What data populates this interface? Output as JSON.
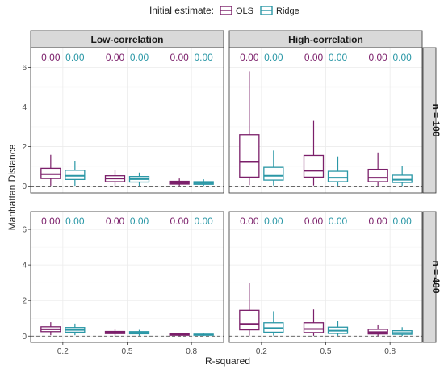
{
  "legend": {
    "title": "Initial estimate:",
    "items": [
      {
        "label": "OLS",
        "color": "#7b1f6a"
      },
      {
        "label": "Ridge",
        "color": "#2a97a6"
      }
    ]
  },
  "chart_data": {
    "type": "boxplot",
    "xlabel": "R-squared",
    "ylabel": "Manhattan Distance",
    "categories": [
      "0.2",
      "0.5",
      "0.8"
    ],
    "ylim": [
      -0.35,
      7.0
    ],
    "yticks": [
      0,
      2,
      4,
      6
    ],
    "reference_line": 0,
    "grid": true,
    "legend_position": "top",
    "columns": [
      "Low-correlation",
      "High-correlation"
    ],
    "rows": [
      "n = 100",
      "n = 400"
    ],
    "series": [
      "OLS",
      "Ridge"
    ],
    "annotation_values": [
      "0.00",
      "0.00"
    ],
    "panels": [
      {
        "column": "Low-correlation",
        "row": "n = 100",
        "boxes": {
          "OLS": [
            [
              0.02,
              0.38,
              0.6,
              0.9,
              1.58
            ],
            [
              0.01,
              0.22,
              0.38,
              0.52,
              0.8
            ],
            [
              0.01,
              0.1,
              0.16,
              0.24,
              0.38
            ]
          ],
          "Ridge": [
            [
              0.02,
              0.33,
              0.52,
              0.8,
              1.25
            ],
            [
              0.01,
              0.2,
              0.35,
              0.48,
              0.68
            ],
            [
              0.01,
              0.09,
              0.15,
              0.22,
              0.34
            ]
          ]
        }
      },
      {
        "column": "High-correlation",
        "row": "n = 100",
        "boxes": {
          "OLS": [
            [
              0.05,
              0.45,
              1.22,
              2.6,
              5.8
            ],
            [
              0.03,
              0.45,
              0.78,
              1.55,
              3.3
            ],
            [
              0.02,
              0.22,
              0.42,
              0.85,
              1.7
            ]
          ],
          "Ridge": [
            [
              0.03,
              0.3,
              0.52,
              0.95,
              1.8
            ],
            [
              0.02,
              0.22,
              0.42,
              0.75,
              1.5
            ],
            [
              0.01,
              0.18,
              0.32,
              0.55,
              1.0
            ]
          ]
        }
      },
      {
        "column": "Low-correlation",
        "row": "n = 400",
        "boxes": {
          "OLS": [
            [
              0.05,
              0.25,
              0.38,
              0.52,
              0.78
            ],
            [
              0.02,
              0.14,
              0.2,
              0.26,
              0.38
            ],
            [
              0.01,
              0.05,
              0.08,
              0.12,
              0.18
            ]
          ],
          "Ridge": [
            [
              0.05,
              0.22,
              0.35,
              0.48,
              0.7
            ],
            [
              0.02,
              0.13,
              0.19,
              0.25,
              0.35
            ],
            [
              0.01,
              0.05,
              0.08,
              0.11,
              0.17
            ]
          ]
        }
      },
      {
        "column": "High-correlation",
        "row": "n = 400",
        "boxes": {
          "OLS": [
            [
              0.03,
              0.35,
              0.68,
              1.45,
              3.0
            ],
            [
              0.02,
              0.2,
              0.4,
              0.75,
              1.5
            ],
            [
              0.01,
              0.12,
              0.22,
              0.38,
              0.65
            ]
          ],
          "Ridge": [
            [
              0.03,
              0.22,
              0.45,
              0.75,
              1.4
            ],
            [
              0.02,
              0.15,
              0.3,
              0.5,
              0.85
            ],
            [
              0.01,
              0.1,
              0.18,
              0.3,
              0.5
            ]
          ]
        }
      }
    ]
  }
}
